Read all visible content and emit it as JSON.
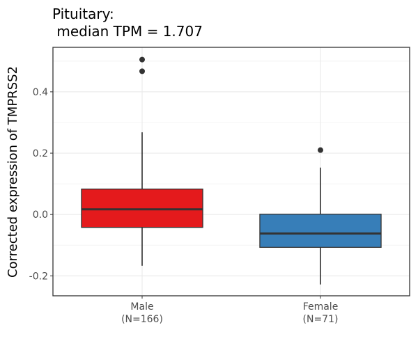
{
  "chart_data": {
    "type": "box",
    "title": [
      "Pituitary:",
      " median TPM = 1.707"
    ],
    "xlabel": "",
    "ylabel": "Corrected expression of TMPRSS2",
    "ylim": [
      -0.265,
      0.545
    ],
    "yticks": [
      -0.2,
      0.0,
      0.2,
      0.4
    ],
    "ytick_labels": [
      "-0.2",
      "0.0",
      "0.2",
      "0.4"
    ],
    "grid": true,
    "legend": "none",
    "categories": [
      {
        "label": "Male",
        "sublabel": "(N=166)"
      },
      {
        "label": "Female",
        "sublabel": "(N=71)"
      }
    ],
    "series": [
      {
        "category": "Male",
        "color": "#E41A1C",
        "whisker_low": -0.167,
        "q1": -0.042,
        "median": 0.017,
        "q3": 0.083,
        "whisker_high": 0.268,
        "outliers": [
          0.505,
          0.467
        ]
      },
      {
        "category": "Female",
        "color": "#377EB8",
        "whisker_low": -0.228,
        "q1": -0.107,
        "median": -0.062,
        "q3": 0.001,
        "whisker_high": 0.153,
        "outliers": [
          0.21
        ]
      }
    ]
  }
}
